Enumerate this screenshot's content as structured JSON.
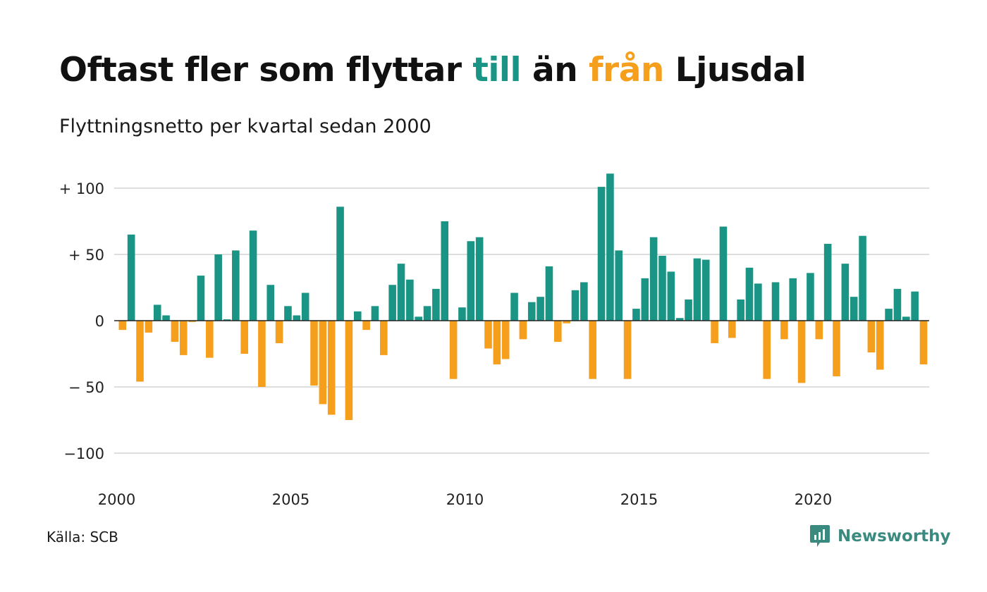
{
  "title": {
    "part1": "Oftast fler som flyttar ",
    "highlight_positive": "till",
    "part2": " än ",
    "highlight_negative": "från",
    "part3": " Ljusdal"
  },
  "subtitle": "Flyttningsnetto per kvartal sedan 2000",
  "source": "Källa: SCB",
  "brand": {
    "name": "Newsworthy",
    "icon": "newsworthy-logo-icon"
  },
  "colors": {
    "positive": "#1a9585",
    "negative": "#f59f1d",
    "grid": "#dddddd",
    "axis": "#222222"
  },
  "chart_data": {
    "type": "bar",
    "title": "Oftast fler som flyttar till än från Ljusdal",
    "subtitle": "Flyttningsnetto per kvartal sedan 2000",
    "x_start": "2000 Q1",
    "x_step": "quarter",
    "ylim": [
      -100,
      100
    ],
    "y_ticks": [
      100,
      50,
      0,
      -50,
      -100
    ],
    "y_tick_labels": [
      "+ 100",
      "+  50",
      "0",
      "− 50",
      "−100"
    ],
    "x_tick_labels": [
      {
        "label": "2000",
        "year": 2000
      },
      {
        "label": "2005",
        "year": 2005
      },
      {
        "label": "2010",
        "year": 2010
      },
      {
        "label": "2015",
        "year": 2015
      },
      {
        "label": "2020",
        "year": 2020
      }
    ],
    "grid": true,
    "values": [
      -7,
      65,
      -46,
      -9,
      12,
      4,
      -16,
      -26,
      -1,
      34,
      -28,
      50,
      1,
      53,
      -25,
      68,
      -50,
      27,
      -17,
      11,
      4,
      21,
      -49,
      -63,
      -71,
      86,
      -75,
      7,
      -7,
      11,
      -26,
      27,
      43,
      31,
      3,
      11,
      24,
      75,
      -44,
      10,
      60,
      63,
      -21,
      -33,
      -29,
      21,
      -14,
      14,
      18,
      41,
      -16,
      -2,
      23,
      29,
      -44,
      101,
      111,
      53,
      -44,
      9,
      32,
      63,
      49,
      37,
      2,
      16,
      47,
      46,
      -17,
      71,
      -13,
      16,
      40,
      28,
      -44,
      29,
      -14,
      32,
      -47,
      36,
      -14,
      58,
      -42,
      43,
      18,
      64,
      -24,
      -37,
      9,
      24,
      3,
      22,
      -33
    ]
  }
}
